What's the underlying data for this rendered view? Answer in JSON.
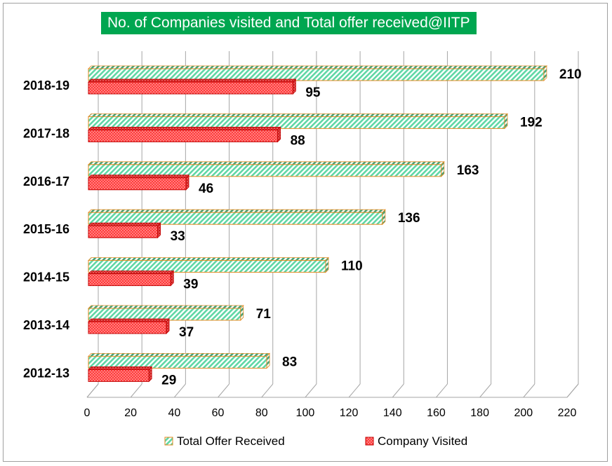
{
  "colors": {
    "title_bg": "#00a650",
    "offer_fill": "#5fd7a5",
    "offer_edge": "#e3891e",
    "visit_fill": "#ff5050",
    "visit_edge": "#c00000",
    "grid": "#a6a6a6"
  },
  "chart_data": {
    "type": "bar",
    "orientation": "horizontal",
    "title": "No. of Companies visited and Total offer received@IITP",
    "categories": [
      "2018-19",
      "2017-18",
      "2016-17",
      "2015-16",
      "2014-15",
      "2013-14",
      "2012-13"
    ],
    "series": [
      {
        "name": "Total Offer Received",
        "values": [
          210,
          192,
          163,
          136,
          110,
          71,
          83
        ]
      },
      {
        "name": "Company Visited",
        "values": [
          95,
          88,
          46,
          33,
          39,
          37,
          29
        ]
      }
    ],
    "xlim": [
      0,
      220
    ],
    "xticks": [
      "0",
      "20",
      "40",
      "60",
      "80",
      "100",
      "120",
      "140",
      "160",
      "180",
      "200",
      "220"
    ],
    "xlabel": "",
    "ylabel": "",
    "grid": true,
    "legend": "bottom"
  }
}
